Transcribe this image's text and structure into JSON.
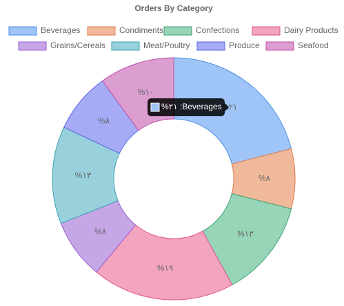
{
  "chart_data": {
    "type": "doughnut",
    "title": "Orders By Category",
    "categories": [
      "Beverages",
      "Condiments",
      "Confections",
      "Dairy Products",
      "Grains/Cereals",
      "Meat/Poultry",
      "Produce",
      "Seafood"
    ],
    "values": [
      21,
      8,
      13,
      19,
      8,
      13,
      8,
      10
    ],
    "value_labels": [
      "%٢١",
      "%٨",
      "%١٣",
      "%١٩",
      "%٨",
      "%١٣",
      "%٨",
      "%١٠"
    ],
    "colors": [
      "#9fc5f8",
      "#f0b99b",
      "#97d5b9",
      "#f3a4bf",
      "#c6a7e6",
      "#98d1dc",
      "#a5acf5",
      "#dc9dd0"
    ],
    "border_colors": [
      "#4a90e2",
      "#e07b4f",
      "#3aa06e",
      "#e05585",
      "#9b5bd1",
      "#3aa0b2",
      "#5b63e6",
      "#c050a8"
    ],
    "tooltip": "%٢١ :Beverages"
  }
}
